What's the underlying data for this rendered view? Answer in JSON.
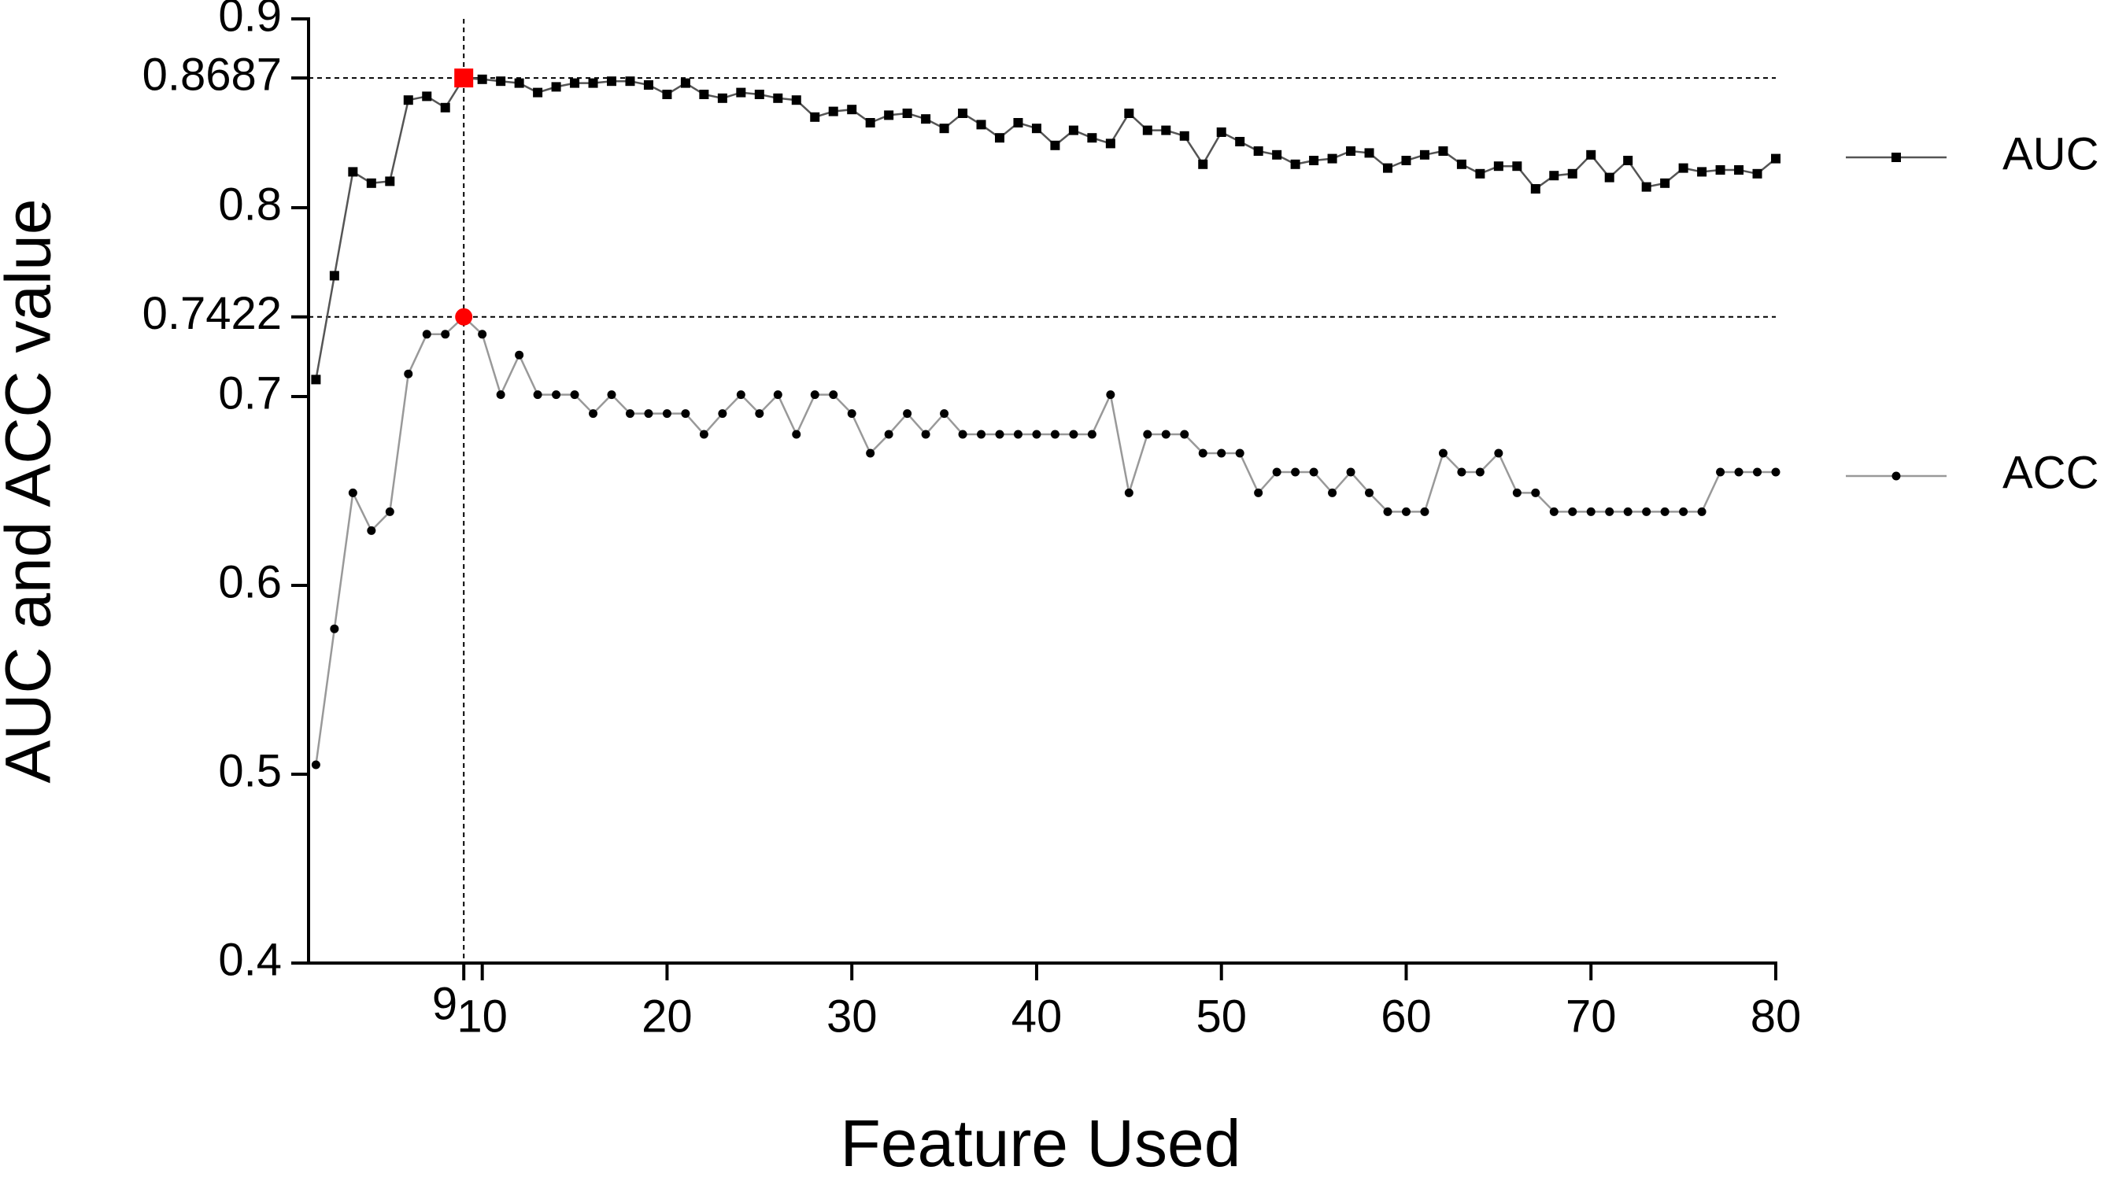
{
  "chart_data": {
    "type": "line",
    "xlabel": "Feature Used",
    "ylabel": "AUC and ACC value",
    "x": [
      1,
      2,
      3,
      4,
      5,
      6,
      7,
      8,
      9,
      10,
      11,
      12,
      13,
      14,
      15,
      16,
      17,
      18,
      19,
      20,
      21,
      22,
      23,
      24,
      25,
      26,
      27,
      28,
      29,
      30,
      31,
      32,
      33,
      34,
      35,
      36,
      37,
      38,
      39,
      40,
      41,
      42,
      43,
      44,
      45,
      46,
      47,
      48,
      49,
      50,
      51,
      52,
      53,
      54,
      55,
      56,
      57,
      58,
      59,
      60,
      61,
      62,
      63,
      64,
      65,
      66,
      67,
      68,
      69,
      70,
      71,
      72,
      73,
      74,
      75,
      76,
      77,
      78,
      79,
      80
    ],
    "series": [
      {
        "name": "AUC",
        "color": "#555555",
        "marker": "square",
        "marker_color": "#000000",
        "values": [
          0.709,
          0.764,
          0.819,
          0.813,
          0.814,
          0.857,
          0.859,
          0.853,
          0.8687,
          0.868,
          0.867,
          0.866,
          0.861,
          0.864,
          0.866,
          0.866,
          0.867,
          0.867,
          0.865,
          0.86,
          0.866,
          0.86,
          0.858,
          0.861,
          0.86,
          0.858,
          0.857,
          0.848,
          0.851,
          0.852,
          0.845,
          0.849,
          0.85,
          0.847,
          0.842,
          0.85,
          0.844,
          0.837,
          0.845,
          0.842,
          0.833,
          0.841,
          0.837,
          0.834,
          0.85,
          0.841,
          0.841,
          0.838,
          0.823,
          0.84,
          0.835,
          0.83,
          0.828,
          0.823,
          0.825,
          0.826,
          0.83,
          0.829,
          0.821,
          0.825,
          0.828,
          0.83,
          0.823,
          0.818,
          0.822,
          0.822,
          0.81,
          0.817,
          0.818,
          0.828,
          0.816,
          0.825,
          0.811,
          0.813,
          0.821,
          0.819,
          0.82,
          0.82,
          0.818,
          0.826
        ]
      },
      {
        "name": "ACC",
        "color": "#999999",
        "marker": "circle",
        "marker_color": "#000000",
        "values": [
          0.505,
          0.577,
          0.649,
          0.629,
          0.639,
          0.712,
          0.733,
          0.733,
          0.7422,
          0.733,
          0.701,
          0.722,
          0.701,
          0.701,
          0.701,
          0.691,
          0.701,
          0.691,
          0.691,
          0.691,
          0.691,
          0.68,
          0.691,
          0.701,
          0.691,
          0.701,
          0.68,
          0.701,
          0.701,
          0.691,
          0.67,
          0.68,
          0.691,
          0.68,
          0.691,
          0.68,
          0.68,
          0.68,
          0.68,
          0.68,
          0.68,
          0.68,
          0.68,
          0.701,
          0.649,
          0.68,
          0.68,
          0.68,
          0.67,
          0.67,
          0.67,
          0.649,
          0.66,
          0.66,
          0.66,
          0.649,
          0.66,
          0.649,
          0.639,
          0.639,
          0.639,
          0.67,
          0.66,
          0.66,
          0.67,
          0.649,
          0.649,
          0.639,
          0.639,
          0.639,
          0.639,
          0.639,
          0.639,
          0.639,
          0.639,
          0.639,
          0.66,
          0.66,
          0.66,
          0.66
        ]
      }
    ],
    "xlim": [
      0.6,
      80
    ],
    "xticks": [
      9,
      10,
      20,
      30,
      40,
      50,
      60,
      70,
      80
    ],
    "ylim": [
      0.4,
      0.9
    ],
    "yticks": [
      0.4,
      0.5,
      0.6,
      0.7,
      0.7422,
      0.8,
      0.8687,
      0.9
    ],
    "reference_lines": {
      "x": [
        9
      ],
      "y": [
        0.8687,
        0.7422
      ]
    },
    "highlight": {
      "index": 8,
      "color": "#ff0000"
    },
    "grid": false
  }
}
